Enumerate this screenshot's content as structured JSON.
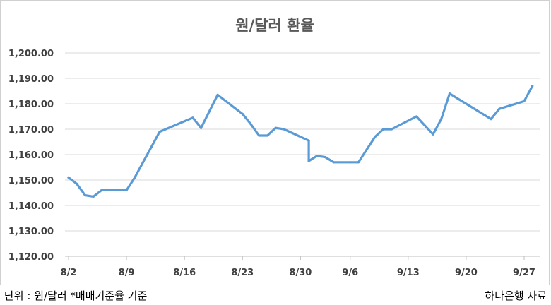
{
  "chart_data": {
    "type": "line",
    "title": "원/달러 환율",
    "xlabel": "",
    "ylabel": "",
    "ylim": [
      1120,
      1200
    ],
    "y_ticks": [
      "1,120.00",
      "1,130.00",
      "1,140.00",
      "1,150.00",
      "1,160.00",
      "1,170.00",
      "1,180.00",
      "1,190.00",
      "1,200.00"
    ],
    "x_tick_labels": [
      "8/2",
      "8/9",
      "8/16",
      "8/23",
      "8/30",
      "9/6",
      "9/13",
      "9/20",
      "9/27"
    ],
    "grid": true,
    "legend": "none",
    "color": "#5b9bd5",
    "series": [
      {
        "values": [
          {
            "date": "8/2",
            "value": 1151.0
          },
          {
            "date": "8/3",
            "value": 1148.5
          },
          {
            "date": "8/4",
            "value": 1144.0
          },
          {
            "date": "8/5",
            "value": 1143.5
          },
          {
            "date": "8/6",
            "value": 1146.0
          },
          {
            "date": "8/9",
            "value": 1146.0
          },
          {
            "date": "8/10",
            "value": 1151.0
          },
          {
            "date": "8/11",
            "value": 1157.0
          },
          {
            "date": "8/12",
            "value": 1163.0
          },
          {
            "date": "8/13",
            "value": 1169.0
          },
          {
            "date": "8/17",
            "value": 1174.5
          },
          {
            "date": "8/18",
            "value": 1170.5
          },
          {
            "date": "8/20",
            "value": 1183.5
          },
          {
            "date": "8/23",
            "value": 1176.0
          },
          {
            "date": "8/24",
            "value": 1172.0
          },
          {
            "date": "8/25",
            "value": 1167.5
          },
          {
            "date": "8/26",
            "value": 1167.5
          },
          {
            "date": "8/27",
            "value": 1170.5
          },
          {
            "date": "8/28",
            "value": 1170.0
          },
          {
            "date": "8/31",
            "value": 1165.5
          },
          {
            "date": "9/1",
            "value": 1157.5
          },
          {
            "date": "9/2",
            "value": 1159.5
          },
          {
            "date": "9/3",
            "value": 1159.0
          },
          {
            "date": "9/4",
            "value": 1157.0
          },
          {
            "date": "9/6",
            "value": 1157.0
          },
          {
            "date": "9/7",
            "value": 1157.0
          },
          {
            "date": "9/8",
            "value": 1162.0
          },
          {
            "date": "9/9",
            "value": 1167.0
          },
          {
            "date": "9/10",
            "value": 1170.0
          },
          {
            "date": "9/11",
            "value": 1170.0
          },
          {
            "date": "9/14",
            "value": 1175.0
          },
          {
            "date": "9/16",
            "value": 1168.0
          },
          {
            "date": "9/17",
            "value": 1174.0
          },
          {
            "date": "9/18",
            "value": 1184.0
          },
          {
            "date": "9/23",
            "value": 1174.0
          },
          {
            "date": "9/24",
            "value": 1178.0
          },
          {
            "date": "9/27",
            "value": 1181.0
          },
          {
            "date": "9/28",
            "value": 1187.0
          }
        ]
      }
    ]
  },
  "footer": {
    "left": "단위 : 원/달러 *매매기준율 기준",
    "right": "하나은행 자료"
  }
}
